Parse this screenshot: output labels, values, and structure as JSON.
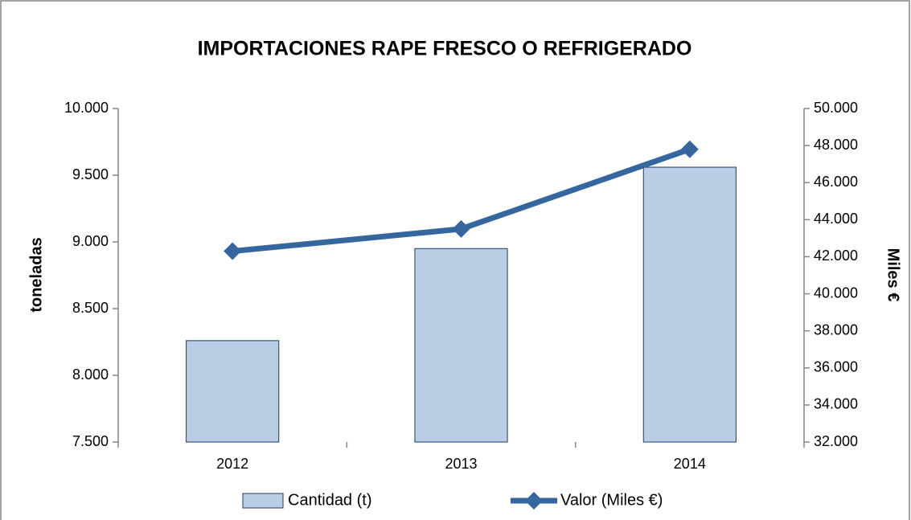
{
  "chart_data": {
    "type": "bar",
    "title": "IMPORTACIONES RAPE  FRESCO O REFRIGERADO",
    "ylabel": "toneladas",
    "y2label": "Miles €",
    "categories": [
      "2012",
      "2013",
      "2014"
    ],
    "series": [
      {
        "name": "Cantidad (t)",
        "type": "bar",
        "color": "#b9cde5",
        "values": [
          8260,
          8950,
          9560
        ]
      },
      {
        "name": "Valor (Miles €)",
        "type": "line",
        "axis": "y2",
        "color": "#35669e",
        "values": [
          42300,
          43500,
          47800
        ]
      }
    ],
    "ylim": [
      7500,
      10000
    ],
    "yticks": [
      {
        "value": 7500,
        "label": "7.500"
      },
      {
        "value": 8000,
        "label": "8.000"
      },
      {
        "value": 8500,
        "label": "8.500"
      },
      {
        "value": 9000,
        "label": "9.000"
      },
      {
        "value": 9500,
        "label": "9.500"
      },
      {
        "value": 10000,
        "label": "10.000"
      }
    ],
    "y2lim": [
      32000,
      50000
    ],
    "y2ticks": [
      {
        "value": 32000,
        "label": "32.000"
      },
      {
        "value": 34000,
        "label": "34.000"
      },
      {
        "value": 36000,
        "label": "36.000"
      },
      {
        "value": 38000,
        "label": "38.000"
      },
      {
        "value": 40000,
        "label": "40.000"
      },
      {
        "value": 42000,
        "label": "42.000"
      },
      {
        "value": 44000,
        "label": "44.000"
      },
      {
        "value": 46000,
        "label": "46.000"
      },
      {
        "value": 48000,
        "label": "48.000"
      },
      {
        "value": 50000,
        "label": "50.000"
      }
    ],
    "grid": false,
    "legend": "bottom"
  }
}
